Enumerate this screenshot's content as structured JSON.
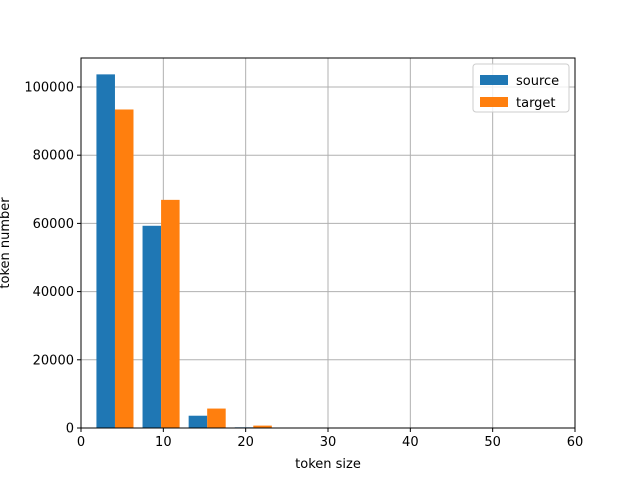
{
  "chart_data": {
    "type": "bar",
    "xlabel": "token size",
    "ylabel": "token number",
    "xlim": [
      0,
      60
    ],
    "ylim": [
      0,
      108500
    ],
    "xticks": [
      0,
      10,
      20,
      30,
      40,
      50,
      60
    ],
    "yticks": [
      0,
      20000,
      40000,
      60000,
      80000,
      100000
    ],
    "xtick_labels": [
      "0",
      "10",
      "20",
      "30",
      "40",
      "50",
      "60"
    ],
    "ytick_labels": [
      "0",
      "20000",
      "40000",
      "60000",
      "80000",
      "100000"
    ],
    "grid": true,
    "legend_position": "top-right",
    "bar_width": 2.25,
    "series": [
      {
        "name": "source",
        "color": "#1f77b4",
        "x": [
          3.0,
          8.6,
          14.2,
          19.8
        ],
        "values": [
          103700,
          59300,
          3600,
          200
        ]
      },
      {
        "name": "target",
        "color": "#ff7f0e",
        "x": [
          5.25,
          10.85,
          16.45,
          22.05
        ],
        "values": [
          93400,
          66900,
          5700,
          700
        ]
      }
    ]
  }
}
